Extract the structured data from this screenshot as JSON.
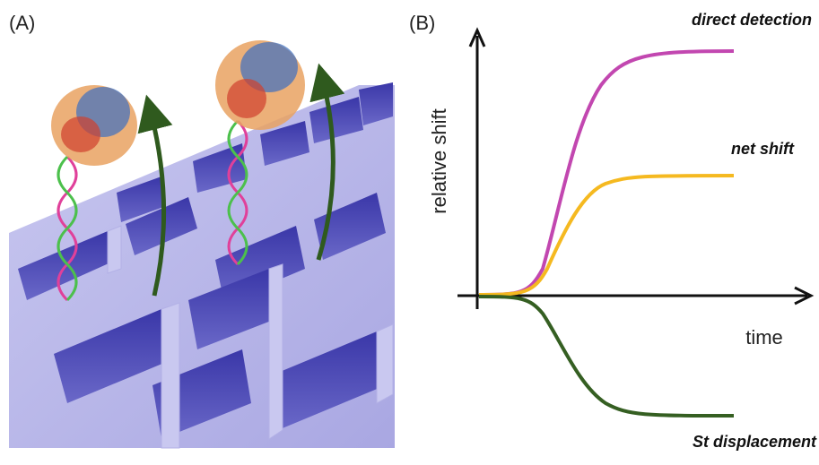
{
  "panels": [
    {
      "label": "(A)"
    },
    {
      "label": "(B)",
      "y_axis_label": "relative shift",
      "x_axis_label": "time",
      "curves": [
        {
          "label": "direct detection"
        },
        {
          "label": "net shift"
        },
        {
          "label": "St displacement"
        }
      ]
    }
  ]
}
